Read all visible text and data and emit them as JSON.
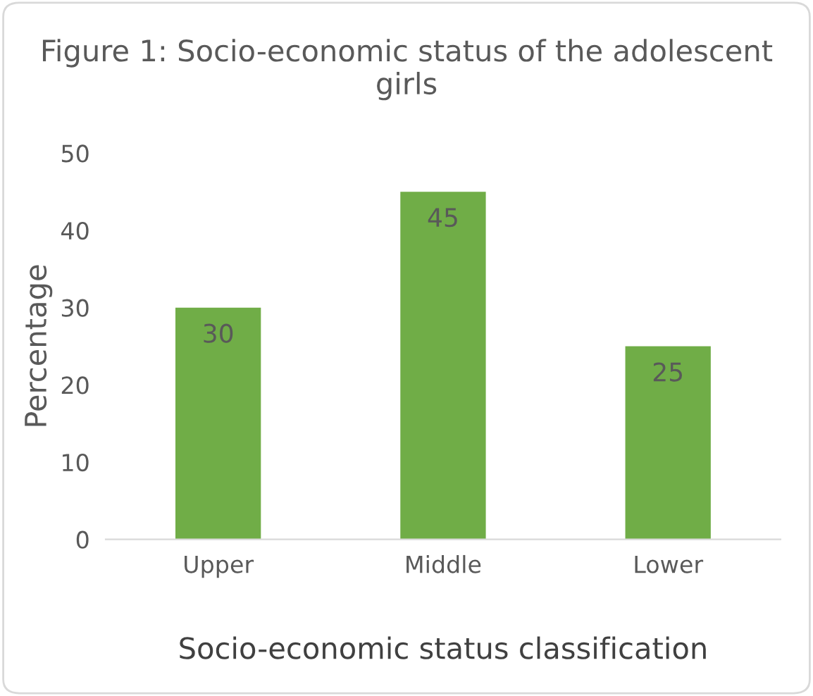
{
  "chart_data": {
    "type": "bar",
    "title": "Figure 1: Socio-economic status of the adolescent girls",
    "categories": [
      "Upper",
      "Middle",
      "Lower"
    ],
    "values": [
      30,
      45,
      25
    ],
    "color": "#70ad47",
    "xlabel": "Socio-economic status classification",
    "ylabel": "Percentage",
    "ylim": [
      0,
      50
    ],
    "yticks": [
      0,
      10,
      20,
      30,
      40,
      50
    ],
    "grid": false,
    "data_labels": true
  }
}
